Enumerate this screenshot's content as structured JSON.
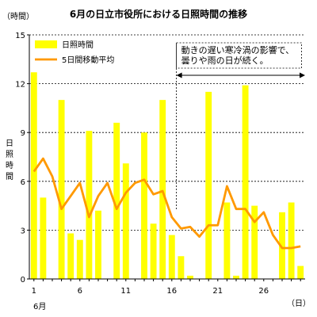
{
  "chart_data": {
    "type": "bar",
    "title": "6月の日立市役所における日照時間の推移",
    "ylabel": "日照時間",
    "yunit": "（時間）",
    "xunit": "（日）",
    "month_label": "6月",
    "ylim": [
      0,
      15
    ],
    "yticks": [
      0,
      3,
      6,
      9,
      12,
      15
    ],
    "xticks": [
      1,
      6,
      11,
      16,
      21,
      26
    ],
    "grid": "horizontal-dashed",
    "legend": "top-left",
    "days": [
      1,
      2,
      3,
      4,
      5,
      6,
      7,
      8,
      9,
      10,
      11,
      12,
      13,
      14,
      15,
      16,
      17,
      18,
      19,
      20,
      21,
      22,
      23,
      24,
      25,
      26,
      27,
      28,
      29,
      30
    ],
    "series": [
      {
        "name": "日照時間",
        "kind": "bar",
        "color": "#ffff00",
        "values": [
          12.7,
          5.0,
          0.0,
          11.0,
          2.8,
          2.4,
          9.1,
          4.2,
          0.0,
          9.6,
          7.1,
          0.0,
          9.0,
          3.4,
          11.0,
          2.7,
          1.4,
          0.2,
          0.0,
          11.5,
          0.0,
          4.7,
          0.2,
          11.9,
          4.5,
          0.0,
          0.0,
          4.1,
          4.7,
          0.8
        ]
      },
      {
        "name": "5日間移動平均",
        "kind": "line",
        "color": "#ff9900",
        "values": [
          6.6,
          7.4,
          6.3,
          4.3,
          5.1,
          5.9,
          3.8,
          5.1,
          5.9,
          4.3,
          5.3,
          5.9,
          6.1,
          5.2,
          5.4,
          3.8,
          3.1,
          3.2,
          2.6,
          3.3,
          3.3,
          5.7,
          4.3,
          4.3,
          3.5,
          4.1,
          2.7,
          1.9,
          1.9,
          2.0
        ]
      }
    ],
    "annotation": {
      "lines": [
        "動きの遅い寒冷渦の影響で、",
        "曇りや雨の日が続く。"
      ],
      "from_day": 16.5,
      "to_day": 30.5
    }
  }
}
